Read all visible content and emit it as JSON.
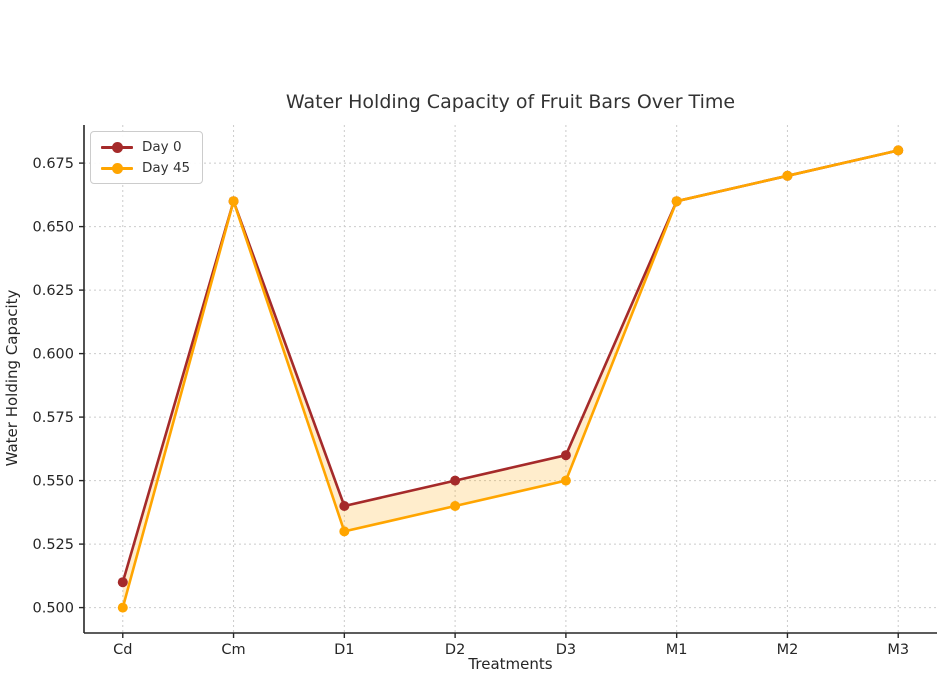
{
  "chart_data": {
    "type": "line",
    "title": "Water Holding Capacity of Fruit Bars Over Time",
    "xlabel": "Treatments",
    "ylabel": "Water Holding Capacity",
    "categories": [
      "Cd",
      "Cm",
      "D1",
      "D2",
      "D3",
      "M1",
      "M2",
      "M3"
    ],
    "series": [
      {
        "name": "Day 0",
        "color": "#A52A2A",
        "marker": "circle",
        "values": [
          0.51,
          0.66,
          0.54,
          0.55,
          0.56,
          0.66,
          0.67,
          0.68
        ]
      },
      {
        "name": "Day 45",
        "color": "#FFA500",
        "marker": "circle",
        "values": [
          0.5,
          0.66,
          0.53,
          0.54,
          0.55,
          0.66,
          0.67,
          0.68
        ]
      }
    ],
    "fill_between": {
      "between": [
        "Day 0",
        "Day 45"
      ],
      "color": "#FFA500",
      "opacity": 0.2
    },
    "y_ticks": [
      "0.500",
      "0.525",
      "0.550",
      "0.575",
      "0.600",
      "0.625",
      "0.650",
      "0.675"
    ],
    "ylim": [
      0.49,
      0.69
    ],
    "x_margin": 0.35,
    "grid": true,
    "grid_color": "#cbcbcb",
    "axis_color": "#262626",
    "tick_label_color": "#262626",
    "legend_position": "upper left"
  }
}
